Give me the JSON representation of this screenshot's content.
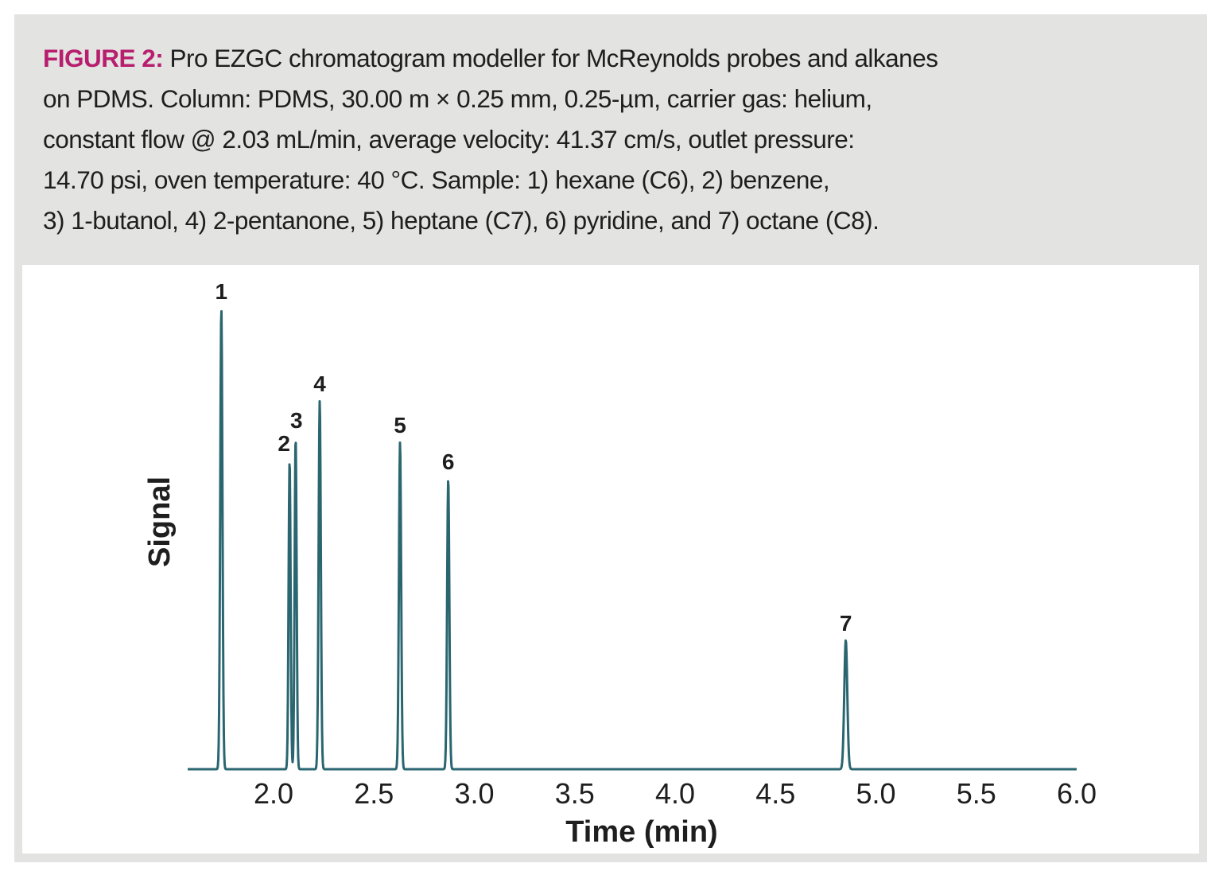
{
  "caption": {
    "label": "FIGURE 2:",
    "line1": "Pro EZGC chromatogram modeller for McReynolds probes and alkanes",
    "line2": "on PDMS. Column: PDMS, 30.00 m × 0.25 mm, 0.25-µm, carrier gas: helium,",
    "line3": "constant flow @ 2.03 mL/min, average velocity: 41.37 cm/s, outlet pressure:",
    "line4": "14.70 psi, oven temperature: 40 °C. Sample: 1) hexane (C6), 2) benzene,",
    "line5": "3) 1-butanol, 4) 2-pentanone, 5) heptane (C7), 6) pyridine, and 7) octane (C8)."
  },
  "colors": {
    "trace": "#2a6670",
    "caption_label": "#b81e6e",
    "frame": "#e3e3e2"
  },
  "chart_data": {
    "type": "line",
    "xlabel": "Time (min)",
    "ylabel": "Signal",
    "xlim": [
      1.6,
      6.0
    ],
    "ylim": [
      0,
      1.0
    ],
    "x_ticks": [
      "2.0",
      "2.5",
      "3.0",
      "3.5",
      "4.0",
      "4.5",
      "5.0",
      "5.5",
      "6.0"
    ],
    "x_tick_values": [
      2.0,
      2.5,
      3.0,
      3.5,
      4.0,
      4.5,
      5.0,
      5.5,
      6.0
    ],
    "grid": false,
    "peaks": [
      {
        "label": "1",
        "time": 1.74,
        "height": 1.0,
        "width": 0.022
      },
      {
        "label": "2",
        "time": 2.08,
        "height": 0.67,
        "width": 0.02
      },
      {
        "label": "3",
        "time": 2.11,
        "height": 0.72,
        "width": 0.02
      },
      {
        "label": "4",
        "time": 2.23,
        "height": 0.8,
        "width": 0.022
      },
      {
        "label": "5",
        "time": 2.63,
        "height": 0.71,
        "width": 0.022
      },
      {
        "label": "6",
        "time": 2.87,
        "height": 0.63,
        "width": 0.022
      },
      {
        "label": "7",
        "time": 4.85,
        "height": 0.28,
        "width": 0.03
      }
    ]
  }
}
